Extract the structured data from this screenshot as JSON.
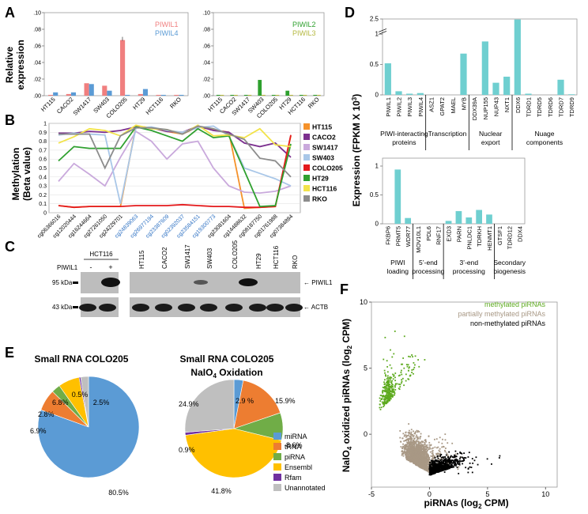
{
  "panels": {
    "A": "A",
    "B": "B",
    "C": "C",
    "D": "D",
    "E": "E",
    "F": "F"
  },
  "colors": {
    "piwil1": "#F07F7F",
    "piwil4": "#5B9BD5",
    "piwil2": "#2EA02E",
    "piwil3": "#B5B840",
    "cyan": "#6FCFD0",
    "methylated": "#5DAA1E",
    "partial": "#A89885",
    "nonmeth": "#000000"
  },
  "panelA": {
    "ylabel_line1": "Relative",
    "ylabel_line2": "expression",
    "cell_lines": [
      "HT115",
      "CACO2",
      "SW1417",
      "SW403",
      "COLO205",
      "HT29",
      "HCT116",
      "RKO"
    ],
    "left_yticks": [
      ".00",
      ".02",
      ".04",
      ".06",
      ".08",
      ".10"
    ],
    "right_yticks": [
      ".00",
      ".02",
      ".04",
      ".06",
      ".08",
      ".10"
    ],
    "legend_left": [
      "PIWIL1",
      "PIWIL4"
    ],
    "legend_right": [
      "PIWIL2",
      "PIWIL3"
    ],
    "chart_data": [
      {
        "type": "bar",
        "categories": [
          "HT115",
          "CACO2",
          "SW1417",
          "SW403",
          "COLO205",
          "HT29",
          "HCT116",
          "RKO"
        ],
        "ylim": [
          0,
          0.1
        ],
        "series": [
          {
            "name": "PIWIL1",
            "values": [
              0.001,
              0.002,
              0.015,
              0.012,
              0.067,
              0.002,
              0.001,
              0.001
            ]
          },
          {
            "name": "PIWIL4",
            "values": [
              0.004,
              0.004,
              0.014,
              0.006,
              0.001,
              0.008,
              0.001,
              0.001
            ]
          }
        ]
      },
      {
        "type": "bar",
        "categories": [
          "HT115",
          "CACO2",
          "SW1417",
          "SW403",
          "COLO205",
          "HT29",
          "HCT116",
          "RKO"
        ],
        "ylim": [
          0,
          0.1
        ],
        "series": [
          {
            "name": "PIWIL2",
            "values": [
              0.001,
              0.001,
              0.001,
              0.019,
              0.001,
              0.006,
              0.001,
              0.001
            ]
          },
          {
            "name": "PIWIL3",
            "values": [
              0.001,
              0.001,
              0.001,
              0.001,
              0.001,
              0.001,
              0.001,
              0.001
            ]
          }
        ]
      }
    ]
  },
  "panelB": {
    "ylabel_line1": "Methylation",
    "ylabel_line2": "(Beta value)",
    "yticks": [
      "0",
      "0.1",
      "0.2",
      "0.3",
      "0.4",
      "0.5",
      "0.6",
      "0.7",
      "0.8",
      "0.9",
      "1"
    ],
    "probes": [
      "cg06366016",
      "cg12020444",
      "cg16244664",
      "cg27261050",
      "cg24229701",
      "cg24839063",
      "cg26977194",
      "cg23387609",
      "cg02392037",
      "cg23584151",
      "cg19300773",
      "cg23081604",
      "cg14488632",
      "cg08187750",
      "cg01761988",
      "cg07384894"
    ],
    "blue_probe_indices": [
      5,
      6,
      7,
      8,
      9,
      10
    ],
    "legend": [
      "HT115",
      "CACO2",
      "SW1417",
      "SW403",
      "COLO205",
      "HT29",
      "HCT116",
      "RKO"
    ],
    "legend_colors": [
      "#F5922B",
      "#7B2F8E",
      "#C9A9DC",
      "#A9C7E8",
      "#E41A1C",
      "#2FA02F",
      "#F2E34A",
      "#8C8C8C"
    ],
    "chart_data": {
      "type": "line",
      "x": [
        "cg06366016",
        "cg12020444",
        "cg16244664",
        "cg27261050",
        "cg24229701",
        "cg24839063",
        "cg26977194",
        "cg23387609",
        "cg02392037",
        "cg23584151",
        "cg19300773",
        "cg23081604",
        "cg14488632",
        "cg08187750",
        "cg01761988",
        "cg07384894"
      ],
      "ylim": [
        0,
        1
      ],
      "series": [
        {
          "name": "HT115",
          "values": [
            0.08,
            0.06,
            0.07,
            0.07,
            0.07,
            0.97,
            0.95,
            0.91,
            0.88,
            0.96,
            0.93,
            0.9,
            0.05,
            0.06,
            0.07,
            0.86
          ]
        },
        {
          "name": "CACO2",
          "values": [
            0.89,
            0.89,
            0.91,
            0.9,
            0.92,
            0.96,
            0.95,
            0.91,
            0.9,
            0.97,
            0.92,
            0.9,
            0.78,
            0.74,
            0.78,
            0.62
          ]
        },
        {
          "name": "SW1417",
          "values": [
            0.35,
            0.55,
            0.43,
            0.3,
            0.62,
            0.91,
            0.8,
            0.6,
            0.77,
            0.8,
            0.5,
            0.3,
            0.23,
            0.22,
            0.24,
            0.3
          ]
        },
        {
          "name": "SW403",
          "values": [
            0.87,
            0.89,
            0.88,
            0.87,
            0.1,
            0.95,
            0.96,
            0.92,
            0.9,
            0.95,
            0.97,
            0.86,
            0.5,
            0.44,
            0.38,
            0.3
          ]
        },
        {
          "name": "COLO205",
          "values": [
            0.08,
            0.06,
            0.07,
            0.07,
            0.07,
            0.08,
            0.08,
            0.08,
            0.09,
            0.08,
            0.07,
            0.07,
            0.06,
            0.06,
            0.07,
            0.87
          ]
        },
        {
          "name": "HT29",
          "values": [
            0.58,
            0.74,
            0.72,
            0.72,
            0.72,
            0.96,
            0.92,
            0.86,
            0.8,
            0.94,
            0.84,
            0.86,
            0.47,
            0.07,
            0.08,
            0.77
          ]
        },
        {
          "name": "HCT116",
          "values": [
            0.78,
            0.85,
            0.94,
            0.92,
            0.86,
            0.98,
            0.94,
            0.93,
            0.88,
            0.98,
            0.86,
            0.87,
            0.84,
            0.94,
            0.76,
            0.74
          ]
        },
        {
          "name": "RKO",
          "values": [
            0.88,
            0.88,
            0.88,
            0.5,
            0.86,
            0.95,
            0.95,
            0.93,
            0.88,
            0.97,
            0.94,
            0.88,
            0.82,
            0.61,
            0.58,
            0.4
          ]
        }
      ]
    }
  },
  "panelC": {
    "lane_labels": [
      "HCT116",
      "HT115",
      "CACO2",
      "SW1417",
      "SW403",
      "COLO205",
      "HT29",
      "HCT116",
      "RKO"
    ],
    "piwil1_row_label": "PIWIL1",
    "minus": "-",
    "plus": "+",
    "mw1": "95 kDa",
    "mw2": "43 kDa",
    "band1": "← PIWIL1",
    "band2": "← ACTB"
  },
  "panelD": {
    "ylabel": "Expression (FPKM X 10",
    "ylabel_sup": "3",
    "ylabel_end": ")",
    "yticks_top": [
      "0",
      "0.5",
      "1",
      "2.5"
    ],
    "yticks_bottom": [
      "0",
      "0.5",
      "1"
    ],
    "top_genes": [
      "PIWIL1",
      "PIWIL2",
      "PIWIL3",
      "PIWIL4",
      "ASZ1",
      "GPAT2",
      "MAEL",
      "MYB",
      "DDX39A",
      "NUP155",
      "NUP43",
      "NXT1",
      "DDX6",
      "TDRD1",
      "TDRD5",
      "TDRD6",
      "TDRD7",
      "TDRD9"
    ],
    "top_groups": [
      "PIWI-interacting",
      "proteins",
      "Transcription",
      "Nuclear",
      "export",
      "Nuage",
      "components"
    ],
    "bottom_genes": [
      "FKBP6",
      "PRMT5",
      "WDR77",
      "MOV10L1",
      "PDL6",
      "RNF17",
      "EXD3",
      "PARN",
      "PNLDC1",
      "TDRKH",
      "HENMT1",
      "GTSF1",
      "TDRD12",
      "DDX4"
    ],
    "bottom_groups": [
      "PIWI",
      "loading",
      "5’-end",
      "processing",
      "3’-end",
      "processing",
      "Secondary",
      "biogenesis"
    ],
    "chart_data": [
      {
        "type": "bar",
        "categories": [
          "PIWIL1",
          "PIWIL2",
          "PIWIL3",
          "PIWIL4",
          "ASZ1",
          "GPAT2",
          "MAEL",
          "MYB",
          "DDX39A",
          "NUP155",
          "NUP43",
          "NXT1",
          "DDX6",
          "TDRD1",
          "TDRD5",
          "TDRD6",
          "TDRD7",
          "TDRD9"
        ],
        "values": [
          0.52,
          0.06,
          0.02,
          0.03,
          0,
          0,
          0,
          0.68,
          0,
          0.88,
          0.2,
          0.3,
          2.45,
          0.02,
          0,
          0,
          0.25,
          0.01
        ]
      },
      {
        "type": "bar",
        "categories": [
          "FKBP6",
          "PRMT5",
          "WDR77",
          "MOV10L1",
          "PDL6",
          "RNF17",
          "EXD3",
          "PARN",
          "PNLDC1",
          "TDRKH",
          "HENMT1",
          "GTSF1",
          "TDRD12",
          "DDX4"
        ],
        "values": [
          0,
          0.94,
          0.1,
          0,
          0,
          0,
          0.05,
          0.22,
          0.11,
          0.24,
          0.16,
          0,
          0,
          0
        ]
      }
    ]
  },
  "panelE": {
    "title1": "Small RNA COLO205",
    "title2_line1": "Small RNA COLO205",
    "title2_line2": "NaIO",
    "title2_sub": "4",
    "title2_end": " Oxidation",
    "legend": [
      "miRNA",
      "tRNA",
      "piRNA",
      "Ensembl",
      "Rfam",
      "Unannotated"
    ],
    "legend_colors": [
      "#5B9BD5",
      "#ED7D31",
      "#70AD47",
      "#FFC000",
      "#7030A0",
      "#BFBFBF"
    ],
    "pie1_labels": [
      "80.5%",
      "6.9%",
      "2.8%",
      "6.8%",
      "0.5%",
      "2.5%"
    ],
    "pie2_labels": [
      "2.9 %",
      "15.9%",
      "8.6%",
      "41.8%",
      "0.9%",
      "24.9%"
    ],
    "chart_data": [
      {
        "type": "pie",
        "labels": [
          "miRNA",
          "tRNA",
          "piRNA",
          "Ensembl",
          "Rfam",
          "Unannotated"
        ],
        "values": [
          80.5,
          6.9,
          2.8,
          6.8,
          0.5,
          2.5
        ]
      },
      {
        "type": "pie",
        "labels": [
          "miRNA",
          "tRNA",
          "piRNA",
          "Ensembl",
          "Rfam",
          "Unannotated"
        ],
        "values": [
          2.9,
          15.9,
          8.6,
          41.8,
          0.9,
          24.9
        ]
      }
    ]
  },
  "panelF": {
    "ylabel_a": "NaIO",
    "ylabel_sub": "4",
    "ylabel_b": " oxidized piRNAs (log",
    "ylabel_sub2": "2",
    "ylabel_c": " CPM)",
    "xlabel_a": "piRNAs  (log",
    "xlabel_sub": "2",
    "xlabel_c": " CPM)",
    "xticks": [
      "-5",
      "0",
      "5",
      "10"
    ],
    "yticks": [
      "0",
      "5",
      "10"
    ],
    "legend": [
      "methylated piRNAs",
      "partially methylated piRNAs",
      "non-methylated piRNAs"
    ],
    "chart_data": {
      "type": "scatter",
      "xlim": [
        -5,
        11
      ],
      "ylim": [
        -4,
        10
      ],
      "series": [
        {
          "name": "methylated piRNAs",
          "x_range": [
            -4.3,
            -0.5
          ],
          "y_range": [
            0.5,
            8.5
          ]
        },
        {
          "name": "partially methylated piRNAs",
          "x_range": [
            -2.5,
            3
          ],
          "y_range": [
            -3.5,
            6
          ]
        },
        {
          "name": "non-methylated piRNAs",
          "x_range": [
            -1.5,
            8.5
          ],
          "y_range": [
            -3.5,
            4
          ]
        }
      ]
    }
  }
}
